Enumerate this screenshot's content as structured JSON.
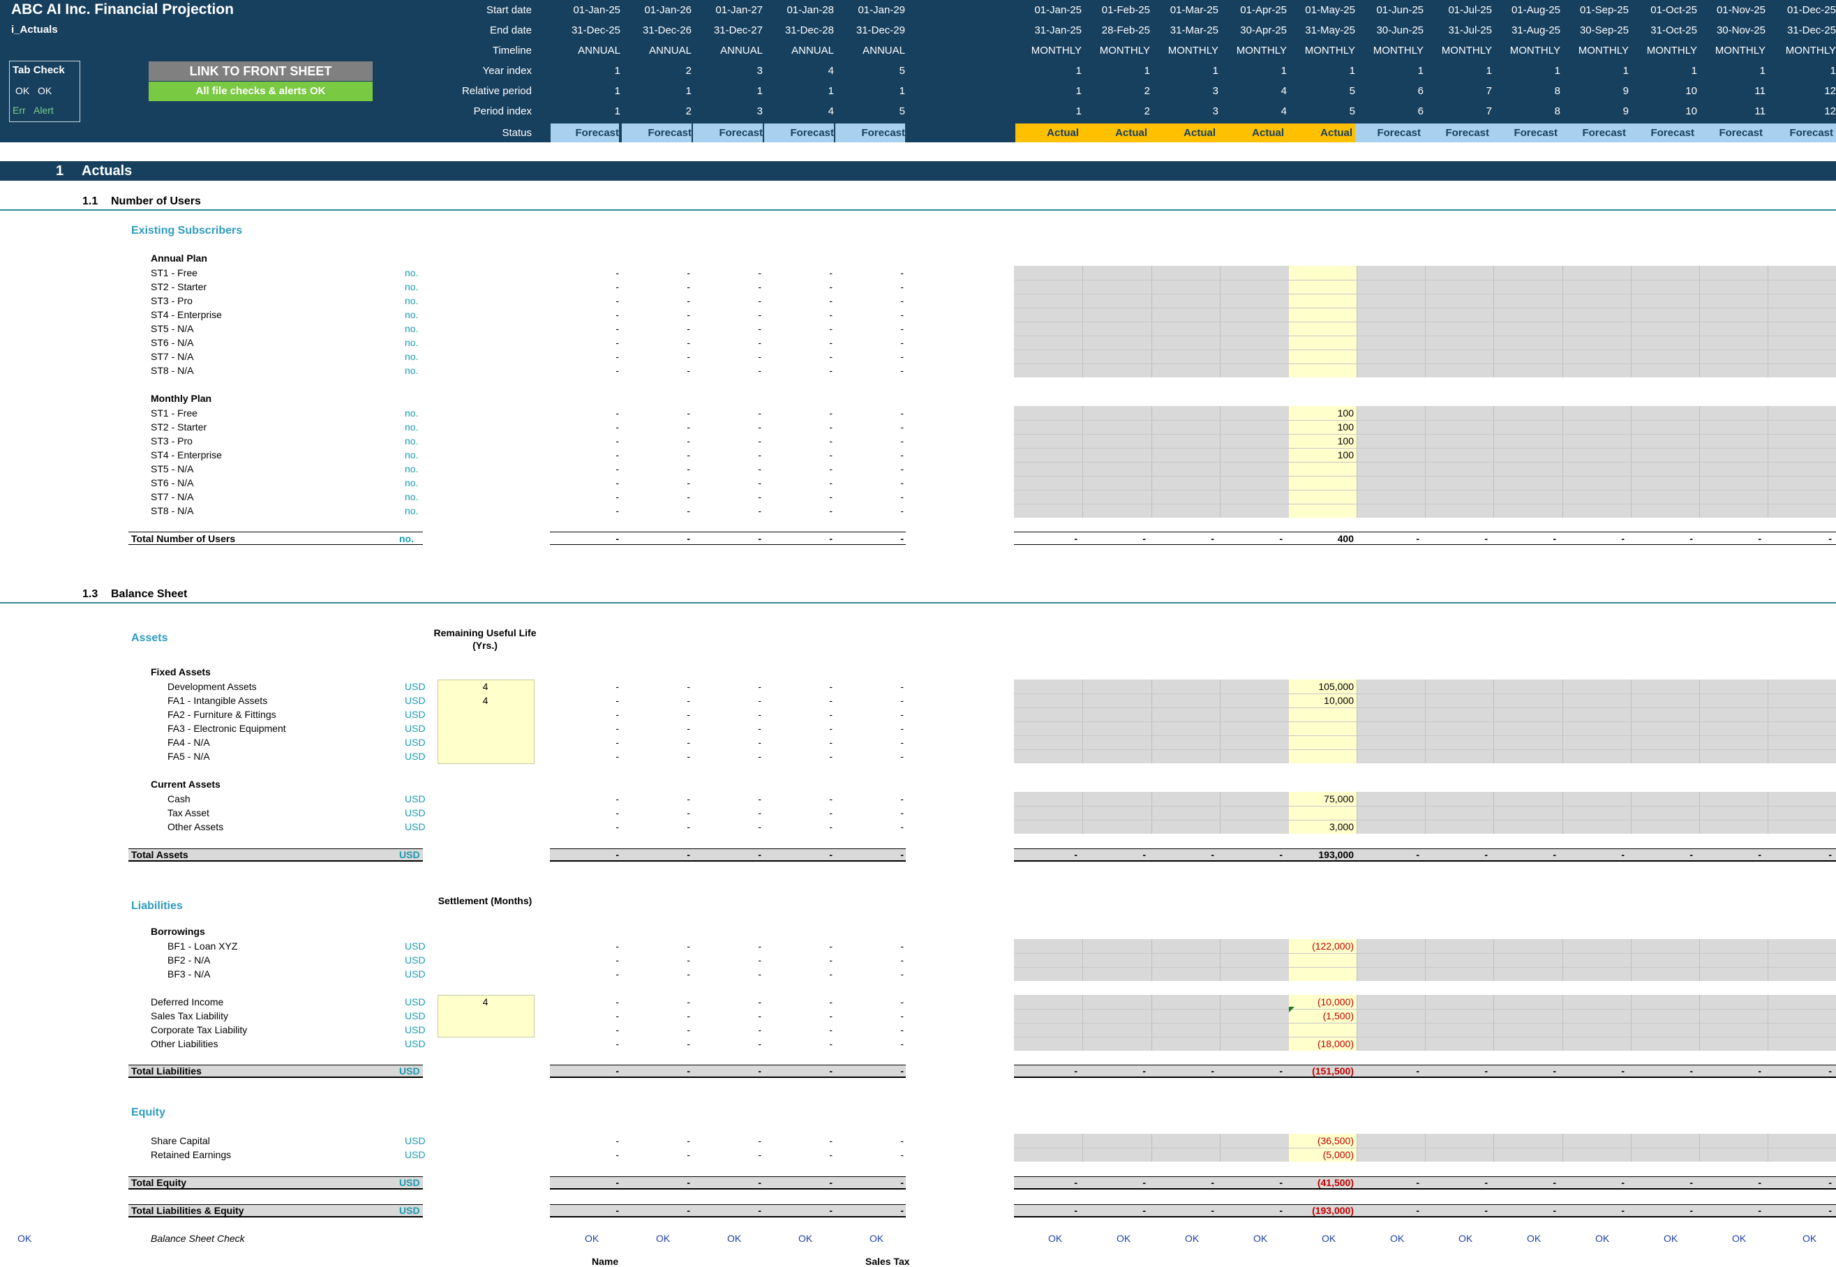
{
  "header": {
    "title": "ABC AI Inc. Financial Projection",
    "sheet_name": "i_Actuals",
    "tab_check": {
      "title": "Tab Check",
      "ok1": "OK",
      "ok2": "OK",
      "err": "Err",
      "alert": "Alert"
    },
    "link_button": "LINK TO FRONT SHEET",
    "status_button": "All file checks & alerts OK",
    "row_labels": {
      "start": "Start date",
      "end": "End date",
      "timeline": "Timeline",
      "year": "Year index",
      "relative": "Relative period",
      "period": "Period index",
      "status": "Status"
    },
    "annual": [
      {
        "start": "01-Jan-25",
        "end": "31-Dec-25",
        "timeline": "ANNUAL",
        "year": "1",
        "rel": "1",
        "period": "1",
        "status": "Forecast"
      },
      {
        "start": "01-Jan-26",
        "end": "31-Dec-26",
        "timeline": "ANNUAL",
        "year": "2",
        "rel": "1",
        "period": "2",
        "status": "Forecast"
      },
      {
        "start": "01-Jan-27",
        "end": "31-Dec-27",
        "timeline": "ANNUAL",
        "year": "3",
        "rel": "1",
        "period": "3",
        "status": "Forecast"
      },
      {
        "start": "01-Jan-28",
        "end": "31-Dec-28",
        "timeline": "ANNUAL",
        "year": "4",
        "rel": "1",
        "period": "4",
        "status": "Forecast"
      },
      {
        "start": "01-Jan-29",
        "end": "31-Dec-29",
        "timeline": "ANNUAL",
        "year": "5",
        "rel": "1",
        "period": "5",
        "status": "Forecast"
      }
    ],
    "monthly": [
      {
        "start": "01-Jan-25",
        "end": "31-Jan-25",
        "timeline": "MONTHLY",
        "year": "1",
        "rel": "1",
        "period": "1",
        "status": "Actual"
      },
      {
        "start": "01-Feb-25",
        "end": "28-Feb-25",
        "timeline": "MONTHLY",
        "year": "1",
        "rel": "2",
        "period": "2",
        "status": "Actual"
      },
      {
        "start": "01-Mar-25",
        "end": "31-Mar-25",
        "timeline": "MONTHLY",
        "year": "1",
        "rel": "3",
        "period": "3",
        "status": "Actual"
      },
      {
        "start": "01-Apr-25",
        "end": "30-Apr-25",
        "timeline": "MONTHLY",
        "year": "1",
        "rel": "4",
        "period": "4",
        "status": "Actual"
      },
      {
        "start": "01-May-25",
        "end": "31-May-25",
        "timeline": "MONTHLY",
        "year": "1",
        "rel": "5",
        "period": "5",
        "status": "Actual"
      },
      {
        "start": "01-Jun-25",
        "end": "30-Jun-25",
        "timeline": "MONTHLY",
        "year": "1",
        "rel": "6",
        "period": "6",
        "status": "Forecast"
      },
      {
        "start": "01-Jul-25",
        "end": "31-Jul-25",
        "timeline": "MONTHLY",
        "year": "1",
        "rel": "7",
        "period": "7",
        "status": "Forecast"
      },
      {
        "start": "01-Aug-25",
        "end": "31-Aug-25",
        "timeline": "MONTHLY",
        "year": "1",
        "rel": "8",
        "period": "8",
        "status": "Forecast"
      },
      {
        "start": "01-Sep-25",
        "end": "30-Sep-25",
        "timeline": "MONTHLY",
        "year": "1",
        "rel": "9",
        "period": "9",
        "status": "Forecast"
      },
      {
        "start": "01-Oct-25",
        "end": "31-Oct-25",
        "timeline": "MONTHLY",
        "year": "1",
        "rel": "10",
        "period": "10",
        "status": "Forecast"
      },
      {
        "start": "01-Nov-25",
        "end": "30-Nov-25",
        "timeline": "MONTHLY",
        "year": "1",
        "rel": "11",
        "period": "11",
        "status": "Forecast"
      },
      {
        "start": "01-Dec-25",
        "end": "31-Dec-25",
        "timeline": "MONTHLY",
        "year": "1",
        "rel": "12",
        "period": "12",
        "status": "Forecast"
      }
    ]
  },
  "section": {
    "number": "1",
    "title": "Actuals"
  },
  "users": {
    "number": "1.1",
    "title": "Number of Users",
    "group": "Existing Subscribers",
    "annual_plan": {
      "title": "Annual Plan",
      "rows": [
        "ST1 - Free",
        "ST2 - Starter",
        "ST3 - Pro",
        "ST4 - Enterprise",
        "ST5 - N/A",
        "ST6 - N/A",
        "ST7 - N/A",
        "ST8 - N/A"
      ]
    },
    "monthly_plan": {
      "title": "Monthly Plan",
      "rows": [
        "ST1 - Free",
        "ST2 - Starter",
        "ST3 - Pro",
        "ST4 - Enterprise",
        "ST5 - N/A",
        "ST6 - N/A",
        "ST7 - N/A",
        "ST8 - N/A"
      ],
      "may_values": [
        "100",
        "100",
        "100",
        "100",
        "",
        "",
        "",
        ""
      ]
    },
    "unit": "no.",
    "total": {
      "label": "Total Number of Users",
      "unit": "no.",
      "may": "400"
    }
  },
  "balance": {
    "number": "1.3",
    "title": "Balance Sheet",
    "assets": {
      "title": "Assets",
      "life_header": "Remaining Useful Life (Yrs.)",
      "fixed_title": "Fixed Assets",
      "fixed": [
        {
          "label": "Development Assets",
          "life": "4",
          "may": "105,000"
        },
        {
          "label": "FA1 - Intangible Assets",
          "life": "4",
          "may": "10,000"
        },
        {
          "label": "FA2 - Furniture & Fittings",
          "life": "",
          "may": ""
        },
        {
          "label": "FA3 - Electronic Equipment",
          "life": "",
          "may": ""
        },
        {
          "label": "FA4 - N/A",
          "life": "",
          "may": ""
        },
        {
          "label": "FA5 - N/A",
          "life": "",
          "may": ""
        }
      ],
      "current_title": "Current Assets",
      "current": [
        {
          "label": "Cash",
          "may": "75,000"
        },
        {
          "label": "Tax Asset",
          "may": ""
        },
        {
          "label": "Other Assets",
          "may": "3,000"
        }
      ],
      "total": {
        "label": "Total Assets",
        "may": "193,000"
      }
    },
    "liabilities": {
      "title": "Liabilities",
      "settle_header": "Settlement (Months)",
      "borrow_title": "Borrowings",
      "borrow": [
        {
          "label": "BF1 - Loan XYZ",
          "may": "(122,000)"
        },
        {
          "label": "BF2 - N/A",
          "may": ""
        },
        {
          "label": "BF3 - N/A",
          "may": ""
        }
      ],
      "other": [
        {
          "label": "Deferred Income",
          "settle": "4",
          "may": "(10,000)"
        },
        {
          "label": "Sales Tax Liability",
          "settle": "",
          "may": "(1,500)"
        },
        {
          "label": "Corporate Tax Liability",
          "settle": "",
          "may": ""
        },
        {
          "label": "Other Liabilities",
          "settle": "",
          "may": "(18,000)"
        }
      ],
      "total": {
        "label": "Total Liabilities",
        "may": "(151,500)"
      }
    },
    "equity": {
      "title": "Equity",
      "rows": [
        {
          "label": "Share Capital",
          "may": "(36,500)"
        },
        {
          "label": "Retained Earnings",
          "may": "(5,000)"
        }
      ],
      "total": {
        "label": "Total Equity",
        "may": "(41,500)"
      },
      "total_le": {
        "label": "Total Liabilities & Equity",
        "may": "(193,000)"
      }
    },
    "unit": "USD",
    "check": {
      "label": "Balance Sheet Check",
      "left": "OK",
      "value": "OK"
    }
  },
  "footer_fragments": {
    "name": "Name",
    "sales_tax": "Sales Tax"
  },
  "dash": "-",
  "colors": {
    "header_bg": "#17405f",
    "forecast": "#a9d0ef",
    "actual": "#ffc000",
    "input": "#ffffcc",
    "locked": "#d9d9d9",
    "unit": "#1a9bb0",
    "negative": "#c00000"
  }
}
